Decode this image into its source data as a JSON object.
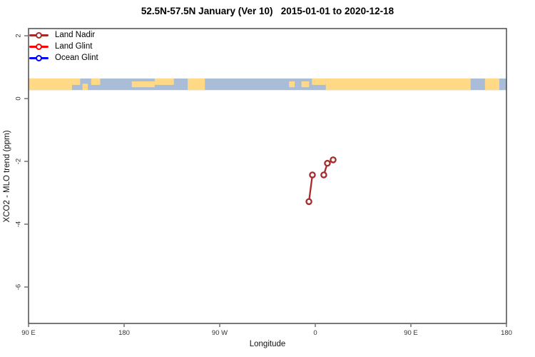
{
  "title": "52.5N-57.5N January (Ver 10)   2015-01-01 to 2020-12-18",
  "axis_titles": {
    "x": "Longitude",
    "y": "XCO2 - MLO trend (ppm)"
  },
  "legend": {
    "entries": [
      {
        "label": "Land Nadir",
        "color": "#A52A2A"
      },
      {
        "label": "Land Glint",
        "color": "#FF0000"
      },
      {
        "label": "Ocean Glint",
        "color": "#0000FF"
      }
    ]
  },
  "colors": {
    "box": "#3f3f3f",
    "tick": "#7a7a7a",
    "land": "#FFD985",
    "ocean": "#A9BDD9",
    "marker_fill": "#ffffff"
  },
  "chart_data": {
    "type": "line",
    "title": "52.5N-57.5N January (Ver 10)   2015-01-01 to 2020-12-18",
    "xlabel": "Longitude",
    "ylabel": "XCO2 - MLO trend (ppm)",
    "grid": false,
    "legend_position": "top-left",
    "x_axis": {
      "note": "axis wraps the globe starting at 90E; pos is degrees east of left edge",
      "range": [
        0,
        450
      ],
      "ticks": [
        {
          "pos": 0,
          "label": "90 E"
        },
        {
          "pos": 90,
          "label": "180"
        },
        {
          "pos": 180,
          "label": "90 W"
        },
        {
          "pos": 270,
          "label": "0"
        },
        {
          "pos": 360,
          "label": "90 E"
        },
        {
          "pos": 450,
          "label": "180"
        }
      ]
    },
    "y_axis": {
      "range": [
        -7.16,
        2.23
      ],
      "ticks": [
        {
          "value": 2,
          "label": "2"
        },
        {
          "value": 0,
          "label": "0"
        },
        {
          "value": -2,
          "label": "-2"
        },
        {
          "value": -4,
          "label": "-4"
        },
        {
          "value": -6,
          "label": "-6"
        }
      ]
    },
    "series": [
      {
        "name": "Land Nadir",
        "color": "#A52A2A",
        "segments": [
          [
            {
              "lon": -6,
              "value": -3.28
            },
            {
              "lon": -2.7,
              "value": -2.43
            }
          ],
          [
            {
              "lon": 8,
              "value": -2.43
            },
            {
              "lon": 11.4,
              "value": -2.06
            },
            {
              "lon": 16.8,
              "value": -1.95
            }
          ]
        ]
      },
      {
        "name": "Land Glint",
        "color": "#FF0000",
        "segments": []
      },
      {
        "name": "Ocean Glint",
        "color": "#0000FF",
        "segments": []
      }
    ],
    "map_band": {
      "description": "world coastline strip 52.5N-57.5N drawn across plot",
      "value_top": 0.64,
      "value_bottom": 0.27,
      "land_color": "#FFD985",
      "ocean_color": "#A9BDD9",
      "land_segments": [
        {
          "f1": 0.0,
          "f2": 0.091,
          "v": "full"
        },
        {
          "f1": 0.091,
          "f2": 0.108,
          "v": "top"
        },
        {
          "f1": 0.113,
          "f2": 0.124,
          "v": "bottom"
        },
        {
          "f1": 0.131,
          "f2": 0.15,
          "v": "top"
        },
        {
          "f1": 0.216,
          "f2": 0.264,
          "v": "mid"
        },
        {
          "f1": 0.264,
          "f2": 0.304,
          "v": "top"
        },
        {
          "f1": 0.333,
          "f2": 0.369,
          "v": "full"
        },
        {
          "f1": 0.545,
          "f2": 0.557,
          "v": "mid"
        },
        {
          "f1": 0.571,
          "f2": 0.587,
          "v": "mid"
        },
        {
          "f1": 0.593,
          "f2": 0.622,
          "v": "top"
        },
        {
          "f1": 0.622,
          "f2": 0.925,
          "v": "full"
        },
        {
          "f1": 0.955,
          "f2": 0.985,
          "v": "full"
        }
      ]
    }
  }
}
